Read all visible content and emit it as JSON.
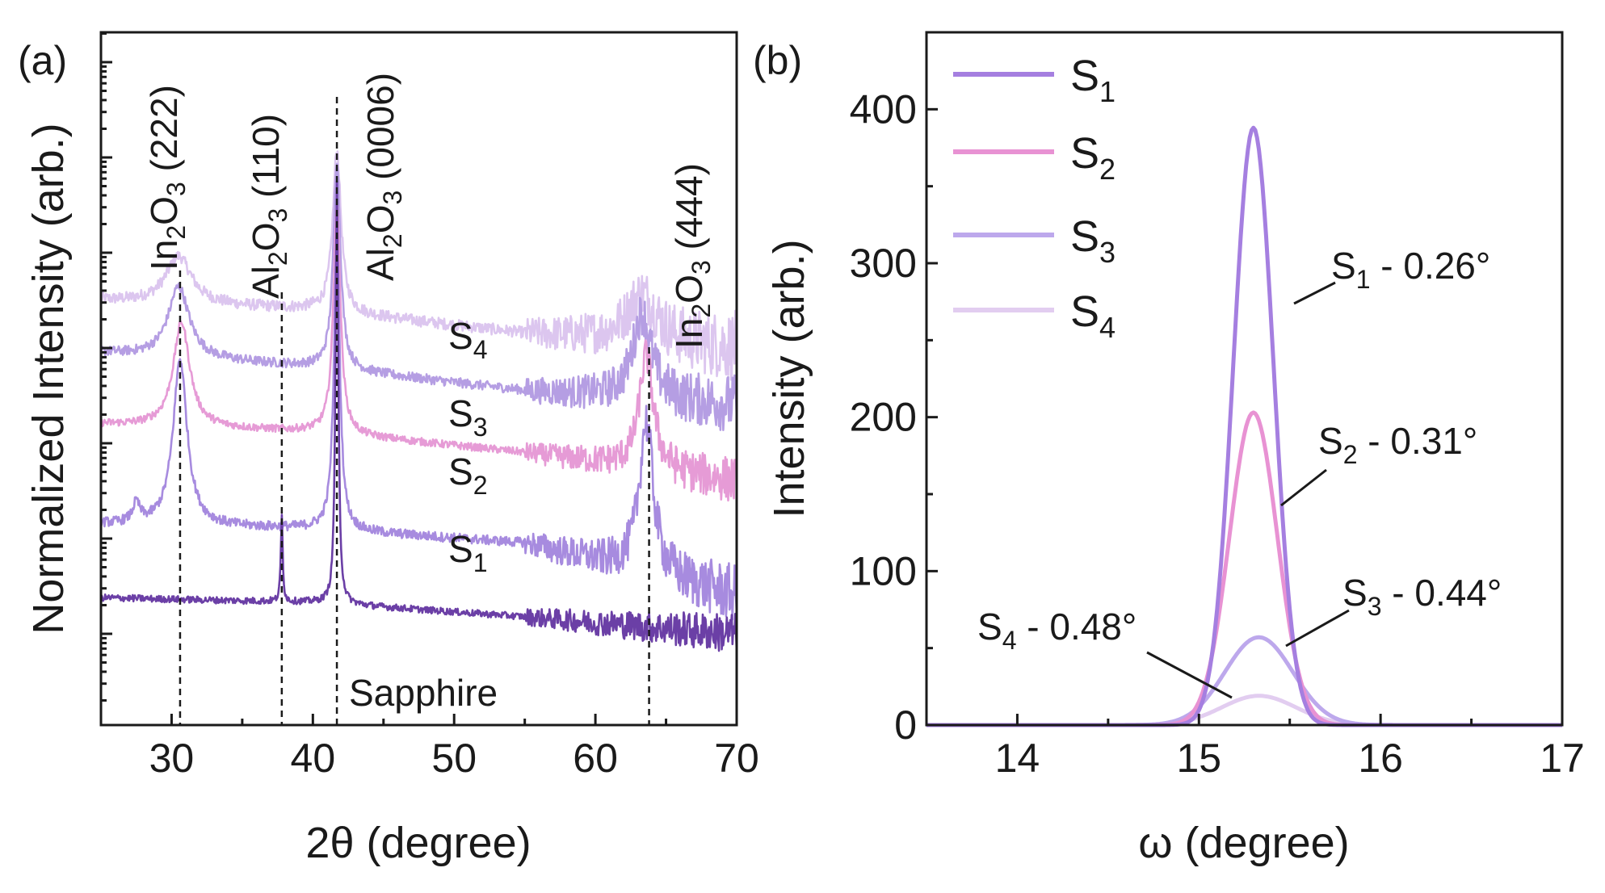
{
  "colors": {
    "S1": "#a78bdf",
    "S2": "#e69bd6",
    "S3": "#b59ee3",
    "S4": "#dcc6ef",
    "Sapphire": "#6b3fa6",
    "S1_rock": "#a57fe0",
    "S2_rock": "#e892d3",
    "S3_rock": "#bda8ec",
    "S4_rock": "#e2cdf0",
    "axis": "#1a1a1a"
  },
  "chart_data": [
    {
      "panel_label": "(a)",
      "type": "line",
      "title": "",
      "xlabel": "2θ (degree)",
      "ylabel": "Normalized Intensity (arb.)",
      "xlim": [
        25,
        70
      ],
      "x_ticks": [
        30,
        40,
        50,
        60,
        70
      ],
      "y_scale": "log",
      "y_decades": 6,
      "series": [
        {
          "name": "Sapphire",
          "label": "Sapphire",
          "offset_decades": 0.0,
          "baseline": [
            [
              25,
              0.38
            ],
            [
              40,
              0.33
            ],
            [
              55,
              0.18
            ],
            [
              70,
              0.0
            ]
          ],
          "peaks": [
            {
              "center": 37.8,
              "height": 0.9,
              "width": 0.08
            },
            {
              "center": 41.7,
              "height": 4.4,
              "width": 0.12
            }
          ],
          "noise": 0.035
        },
        {
          "name": "S1",
          "label": "S1",
          "offset_decades": 1.15,
          "baseline": [
            [
              25,
              0.0
            ],
            [
              40,
              -0.05
            ],
            [
              55,
              -0.2
            ],
            [
              70,
              -0.75
            ]
          ],
          "peaks": [
            {
              "center": 30.6,
              "height": 1.75,
              "width": 0.6
            },
            {
              "center": 27.5,
              "height": 0.2,
              "width": 0.3
            },
            {
              "center": 41.7,
              "height": 3.1,
              "width": 0.25
            },
            {
              "center": 63.6,
              "height": 1.6,
              "width": 0.6
            }
          ],
          "noise": 0.05
        },
        {
          "name": "S2",
          "label": "S2",
          "offset_decades": 2.2,
          "baseline": [
            [
              25,
              0.0
            ],
            [
              40,
              -0.08
            ],
            [
              55,
              -0.3
            ],
            [
              70,
              -0.6
            ]
          ],
          "peaks": [
            {
              "center": 30.7,
              "height": 1.1,
              "width": 0.7
            },
            {
              "center": 41.7,
              "height": 2.4,
              "width": 0.3
            },
            {
              "center": 63.6,
              "height": 1.2,
              "width": 0.6
            }
          ],
          "noise": 0.04
        },
        {
          "name": "S3",
          "label": "S3",
          "offset_decades": 2.95,
          "baseline": [
            [
              25,
              0.0
            ],
            [
              40,
              -0.15
            ],
            [
              55,
              -0.4
            ],
            [
              70,
              -0.55
            ]
          ],
          "peaks": [
            {
              "center": 30.5,
              "height": 0.75,
              "width": 0.9
            },
            {
              "center": 41.7,
              "height": 2.2,
              "width": 0.3
            },
            {
              "center": 63.3,
              "height": 0.9,
              "width": 0.8
            }
          ],
          "noise": 0.05
        },
        {
          "name": "S4",
          "label": "S4",
          "offset_decades": 3.5,
          "baseline": [
            [
              25,
              0.0
            ],
            [
              40,
              -0.1
            ],
            [
              55,
              -0.35
            ],
            [
              70,
              -0.5
            ]
          ],
          "peaks": [
            {
              "center": 30.5,
              "height": 0.5,
              "width": 1.1
            },
            {
              "center": 41.7,
              "height": 1.7,
              "width": 0.35
            },
            {
              "center": 63.3,
              "height": 0.5,
              "width": 1.3
            }
          ],
          "noise": 0.06
        }
      ],
      "reference_lines": [
        {
          "x": 30.6,
          "label": "In2O3 (222)"
        },
        {
          "x": 37.8,
          "label": "Al2O3 (110)"
        },
        {
          "x": 41.7,
          "label": "Al2O3 (0006)"
        },
        {
          "x": 63.8,
          "label": "In2O3 (444)"
        }
      ]
    },
    {
      "panel_label": "(b)",
      "type": "line",
      "title": "",
      "xlabel": "ω (degree)",
      "ylabel": "Intensity (arb.)",
      "xlim": [
        13.5,
        17
      ],
      "ylim": [
        0,
        450
      ],
      "x_ticks": [
        14,
        15,
        16,
        17
      ],
      "y_ticks": [
        0,
        100,
        200,
        300,
        400
      ],
      "legend_position": "top-left",
      "series": [
        {
          "name": "S1",
          "center": 15.3,
          "peak": 388,
          "fwhm": 0.26,
          "annotation": "S1 - 0.26°"
        },
        {
          "name": "S2",
          "center": 15.3,
          "peak": 203,
          "fwhm": 0.31,
          "annotation": "S2 - 0.31°"
        },
        {
          "name": "S3",
          "center": 15.33,
          "peak": 57,
          "fwhm": 0.44,
          "annotation": "S3 - 0.44°"
        },
        {
          "name": "S4",
          "center": 15.33,
          "peak": 19,
          "fwhm": 0.48,
          "annotation": "S4 - 0.48°"
        }
      ]
    }
  ]
}
